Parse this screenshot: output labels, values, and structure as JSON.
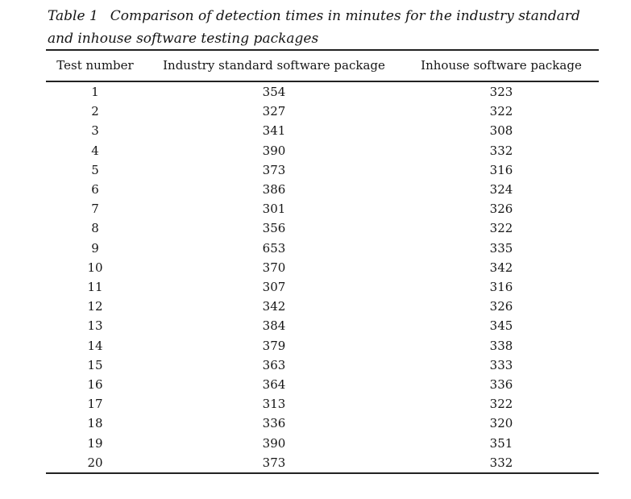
{
  "page": {
    "background_color": "#ffffff",
    "text_color": "#151515",
    "rule_color": "#222222"
  },
  "caption": {
    "label": "Table 1",
    "text": "Comparison of detection times in minutes for the industry standard and inhouse software testing packages"
  },
  "table": {
    "columns": [
      "Test number",
      "Industry standard software package",
      "Inhouse software package"
    ],
    "rows": [
      {
        "test": "1",
        "industry": "354",
        "inhouse": "323"
      },
      {
        "test": "2",
        "industry": "327",
        "inhouse": "322"
      },
      {
        "test": "3",
        "industry": "341",
        "inhouse": "308"
      },
      {
        "test": "4",
        "industry": "390",
        "inhouse": "332"
      },
      {
        "test": "5",
        "industry": "373",
        "inhouse": "316"
      },
      {
        "test": "6",
        "industry": "386",
        "inhouse": "324"
      },
      {
        "test": "7",
        "industry": "301",
        "inhouse": "326"
      },
      {
        "test": "8",
        "industry": "356",
        "inhouse": "322"
      },
      {
        "test": "9",
        "industry": "653",
        "inhouse": "335"
      },
      {
        "test": "10",
        "industry": "370",
        "inhouse": "342"
      },
      {
        "test": "11",
        "industry": "307",
        "inhouse": "316"
      },
      {
        "test": "12",
        "industry": "342",
        "inhouse": "326"
      },
      {
        "test": "13",
        "industry": "384",
        "inhouse": "345"
      },
      {
        "test": "14",
        "industry": "379",
        "inhouse": "338"
      },
      {
        "test": "15",
        "industry": "363",
        "inhouse": "333"
      },
      {
        "test": "16",
        "industry": "364",
        "inhouse": "336"
      },
      {
        "test": "17",
        "industry": "313",
        "inhouse": "322"
      },
      {
        "test": "18",
        "industry": "336",
        "inhouse": "320"
      },
      {
        "test": "19",
        "industry": "390",
        "inhouse": "351"
      },
      {
        "test": "20",
        "industry": "373",
        "inhouse": "332"
      }
    ]
  }
}
